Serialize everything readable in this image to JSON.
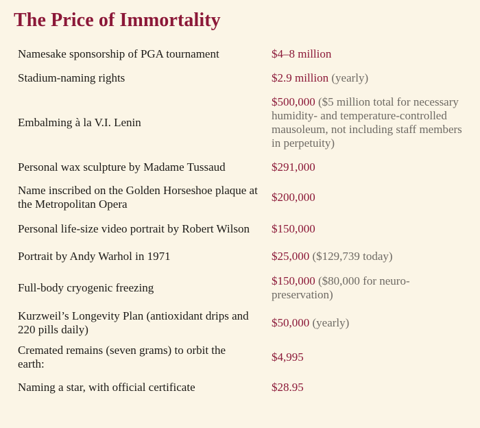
{
  "title": "The Price of Immortality",
  "rows": [
    {
      "item": "Namesake sponsorship of PGA tournament",
      "price": "$4–8 million",
      "note": ""
    },
    {
      "item": "Stadium-naming rights",
      "price": "$2.9 million",
      "note": "(yearly)"
    },
    {
      "item": "Embalming à la V.I. Lenin",
      "price": "$500,000",
      "note": "($5 million total for necessary humidity- and temperature-controlled mausoleum, not including staff members in perpetuity)"
    },
    {
      "item": "Personal wax sculpture by Madame Tussaud",
      "price": "$291,000",
      "note": ""
    },
    {
      "item": "Name inscribed on the Golden Horseshoe plaque at the Metropolitan Opera",
      "price": "$200,000",
      "note": ""
    },
    {
      "item": "Personal life-size video portrait by Robert Wilson",
      "price": "$150,000",
      "note": ""
    },
    {
      "item": "Portrait by Andy Warhol in 1971",
      "price": "$25,000",
      "note": "($129,739 today)"
    },
    {
      "item": "Full-body cryogenic freezing",
      "price": "$150,000",
      "note": "($80,000 for neuro-preservation)"
    },
    {
      "item": "Kurzweil’s Longevity Plan (antioxidant drips and 220 pills daily)",
      "price": "$50,000",
      "note": "(yearly)"
    },
    {
      "item": "Cremated remains (seven grams) to orbit the earth:",
      "price": "$4,995",
      "note": ""
    },
    {
      "item": "Naming a star, with official certificate",
      "price": "$28.95",
      "note": ""
    }
  ]
}
